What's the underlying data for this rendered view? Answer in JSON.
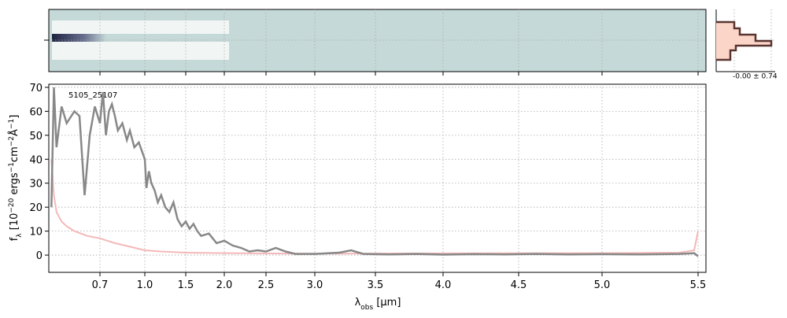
{
  "chart_data": {
    "type": "line",
    "annotation": "5105_25107",
    "side_label": "-0.00 ± 0.74",
    "xlabel": [
      {
        "text": "λ"
      },
      {
        "text": "obs",
        "sub": true
      },
      {
        "text": " [μm]"
      }
    ],
    "ylabel": [
      {
        "text": "f"
      },
      {
        "text": "λ",
        "sub": true
      },
      {
        "text": " [10"
      },
      {
        "text": "−20",
        "sup": true
      },
      {
        "text": " ergs"
      },
      {
        "text": "−1",
        "sup": true
      },
      {
        "text": "cm"
      },
      {
        "text": "−2",
        "sup": true
      },
      {
        "text": "Å"
      },
      {
        "text": "−1",
        "sup": true
      },
      {
        "text": "]"
      }
    ],
    "xlim": [
      0.5,
      5.55
    ],
    "xticks": [
      0.7,
      {
        "value": 1,
        "label": "1.0"
      },
      1.5,
      {
        "value": 2,
        "label": "2.0"
      },
      2.5,
      {
        "value": 3,
        "label": "3.0"
      },
      3.5,
      {
        "value": 4,
        "label": "4.0"
      },
      4.5,
      {
        "value": 5,
        "label": "5.0"
      },
      5.5
    ],
    "ylim": [
      -7.2,
      71.3
    ],
    "yticks": [
      0,
      10,
      20,
      30,
      40,
      50,
      60,
      70
    ],
    "grid": true,
    "series": [
      {
        "color": "#f4b8b8",
        "width": 2,
        "x": [
          0.51,
          0.52,
          0.53,
          0.55,
          0.57,
          0.6,
          0.65,
          0.7,
          0.8,
          0.9,
          1.0,
          1.2,
          1.5,
          2.0,
          3.0,
          4.0,
          5.0,
          5.4,
          5.48,
          5.5
        ],
        "values": [
          40,
          25,
          18,
          14,
          12,
          10,
          8,
          7,
          5,
          3.5,
          2,
          1.5,
          1,
          0.8,
          0.6,
          0.7,
          0.8,
          1,
          2,
          10
        ]
      },
      {
        "color": "#888888",
        "width": 2.5,
        "x": [
          0.51,
          0.52,
          0.53,
          0.55,
          0.57,
          0.6,
          0.62,
          0.64,
          0.66,
          0.68,
          0.7,
          0.72,
          0.74,
          0.76,
          0.78,
          0.8,
          0.82,
          0.85,
          0.88,
          0.9,
          0.93,
          0.96,
          1.0,
          1.02,
          1.05,
          1.08,
          1.12,
          1.16,
          1.2,
          1.25,
          1.3,
          1.35,
          1.4,
          1.45,
          1.5,
          1.55,
          1.6,
          1.65,
          1.7,
          1.8,
          1.9,
          2.0,
          2.1,
          2.2,
          2.3,
          2.4,
          2.5,
          2.6,
          2.7,
          2.8,
          3.0,
          3.2,
          3.3,
          3.4,
          3.6,
          3.8,
          4.0,
          4.2,
          4.4,
          4.6,
          4.8,
          5.0,
          5.2,
          5.4,
          5.48,
          5.5
        ],
        "values": [
          20,
          70,
          45,
          62,
          55,
          60,
          58,
          25,
          50,
          62,
          55,
          68,
          50,
          60,
          63,
          58,
          52,
          55,
          48,
          52,
          45,
          47,
          40,
          28,
          35,
          30,
          27,
          22,
          25,
          20,
          18,
          22,
          15,
          12,
          14,
          11,
          13,
          10,
          8,
          9,
          5,
          6,
          4,
          3,
          1.5,
          2,
          1.5,
          3,
          1.5,
          0.5,
          0.5,
          1,
          2,
          0.5,
          0.3,
          0.5,
          0.2,
          0.4,
          0.3,
          0.5,
          0.3,
          0.4,
          0.3,
          0.5,
          0.8,
          -0.5
        ]
      }
    ]
  }
}
